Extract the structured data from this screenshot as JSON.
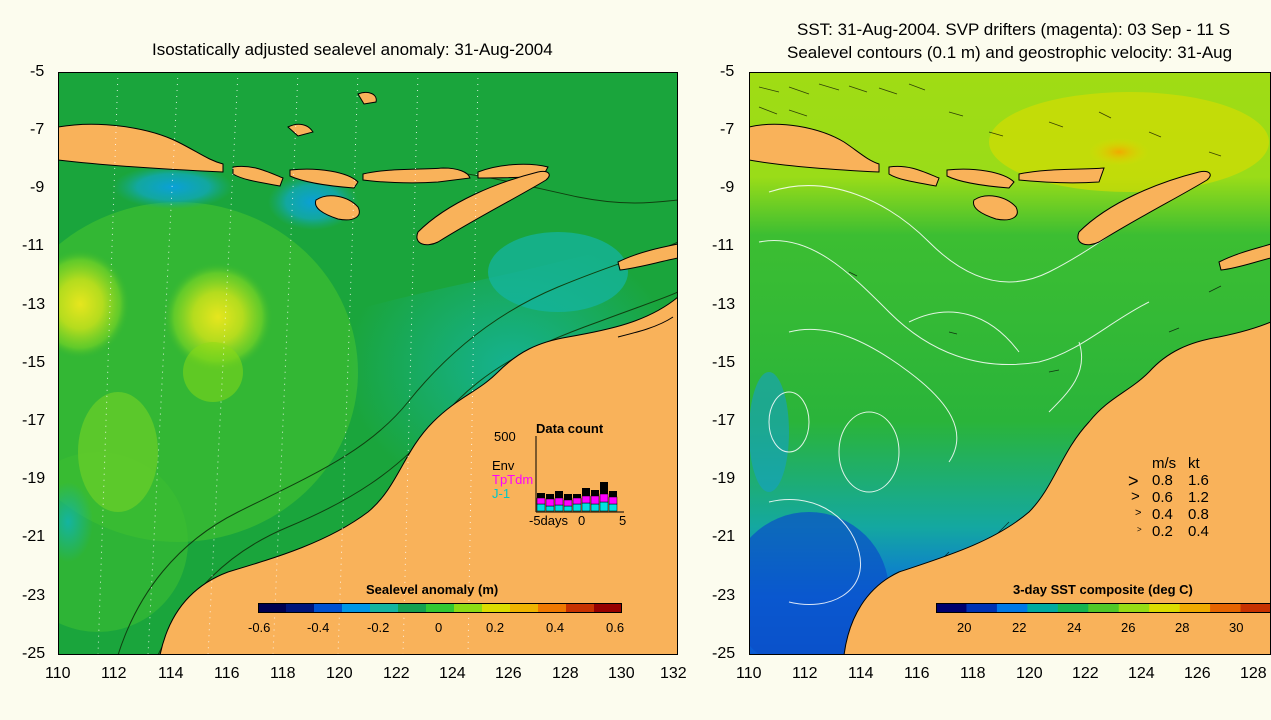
{
  "left_panel": {
    "title": "Isostatically adjusted sealevel anomaly: 31-Aug-2004",
    "y_ticks": [
      "-5",
      "-7",
      "-9",
      "-11",
      "-13",
      "-15",
      "-17",
      "-19",
      "-21",
      "-23",
      "-25"
    ],
    "x_ticks": [
      "110",
      "112",
      "114",
      "116",
      "118",
      "120",
      "122",
      "124",
      "126",
      "128",
      "130",
      "132"
    ],
    "colorbar": {
      "label": "Sealevel anomaly (m)",
      "ticks": [
        "-0.6",
        "-0.4",
        "-0.2",
        "0",
        "0.2",
        "0.4",
        "0.6"
      ],
      "colors": [
        "#000050",
        "#00147a",
        "#0050d0",
        "#0096e6",
        "#14b4a0",
        "#14a050",
        "#32c832",
        "#8cdc14",
        "#dcdc00",
        "#f0b400",
        "#f07800",
        "#c83200",
        "#960000"
      ]
    },
    "inset": {
      "title": "Data count",
      "y_max": "500",
      "legend": [
        {
          "label": "Env",
          "color": "#000000"
        },
        {
          "label": "TpTdm",
          "color": "#ff00ff"
        },
        {
          "label": "J-1",
          "color": "#00c8c8"
        }
      ],
      "x_ticks": [
        "-5days",
        "0",
        "5"
      ]
    },
    "colors": {
      "land": "#f9b25a",
      "sea_base": "#1aa53c",
      "background": "#fcfcee"
    }
  },
  "right_panel": {
    "title_line1": "SST: 31-Aug-2004. SVP drifters (magenta): 03 Sep - 11 S",
    "title_line2": "Sealevel contours (0.1 m) and geostrophic velocity: 31-Aug",
    "y_ticks": [
      "-5",
      "-7",
      "-9",
      "-11",
      "-13",
      "-15",
      "-17",
      "-19",
      "-21",
      "-23",
      "-25"
    ],
    "x_ticks": [
      "110",
      "112",
      "114",
      "116",
      "118",
      "120",
      "122",
      "124",
      "126",
      "128"
    ],
    "colorbar": {
      "label": "3-day SST composite (deg C)",
      "ticks": [
        "20",
        "22",
        "24",
        "26",
        "28",
        "30"
      ],
      "colors": [
        "#00006e",
        "#0032b4",
        "#0078e6",
        "#00aaa0",
        "#14b450",
        "#50c828",
        "#96dc14",
        "#dcdc00",
        "#f0aa00",
        "#e66400",
        "#c83200"
      ]
    },
    "speed_legend": {
      "header_ms": "m/s",
      "header_kt": "kt",
      "rows": [
        {
          "ms": "0.8",
          "kt": "1.6"
        },
        {
          "ms": "0.6",
          "kt": "1.2"
        },
        {
          "ms": "0.4",
          "kt": "0.8"
        },
        {
          "ms": "0.2",
          "kt": "0.4"
        }
      ]
    }
  }
}
